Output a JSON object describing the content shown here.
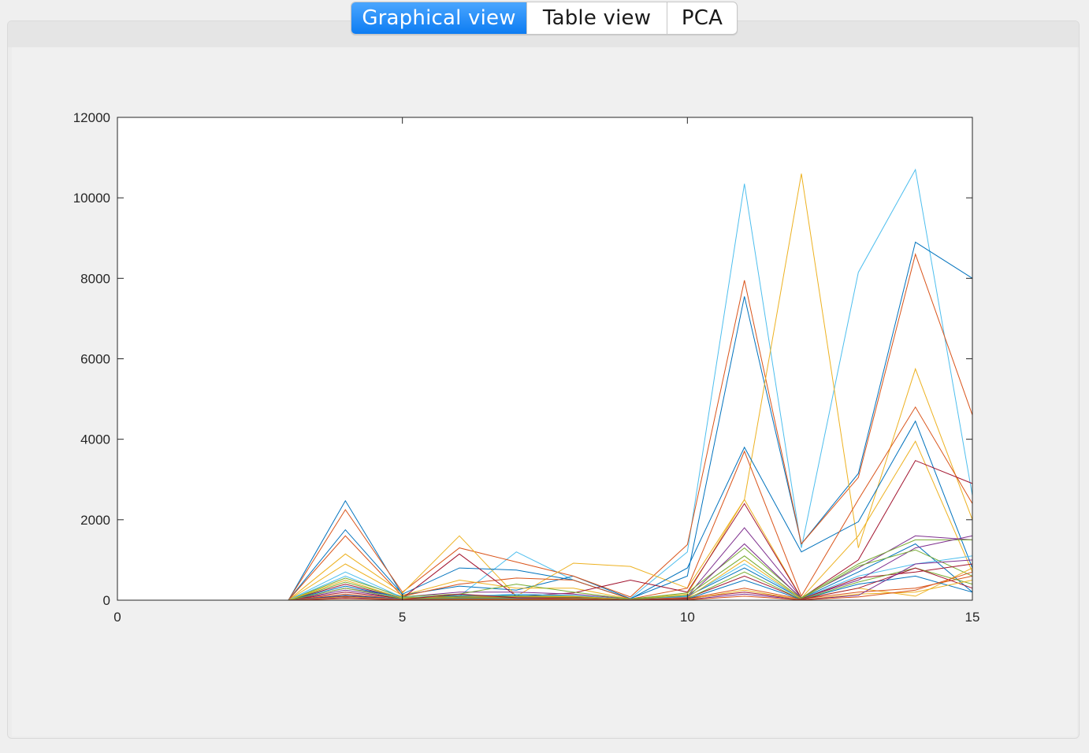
{
  "tabs": [
    {
      "label": "Graphical view",
      "active": true
    },
    {
      "label": "Table view",
      "active": false
    },
    {
      "label": "PCA",
      "active": false
    }
  ],
  "colors": {
    "tab_active": "#0d7cf2",
    "series_palette": [
      "#0072BD",
      "#D95319",
      "#EDB120",
      "#7E2F8E",
      "#77AC30",
      "#4DBEEE",
      "#A2142F"
    ]
  },
  "chart_data": {
    "type": "line",
    "title": "",
    "xlabel": "",
    "ylabel": "",
    "xlim": [
      0,
      15
    ],
    "ylim": [
      0,
      12000
    ],
    "xticks": [
      0,
      5,
      10,
      15
    ],
    "yticks": [
      0,
      2000,
      4000,
      6000,
      8000,
      10000,
      12000
    ],
    "grid": false,
    "legend": "none",
    "x": [
      1,
      2,
      3,
      4,
      5,
      6,
      7,
      8,
      9,
      10,
      11,
      12,
      13,
      14,
      15
    ],
    "series": [
      {
        "color": "#4DBEEE",
        "values": [
          0,
          0,
          0,
          600,
          60,
          100,
          1200,
          500,
          40,
          1200,
          10350,
          1300,
          8150,
          10700,
          2600
        ]
      },
      {
        "color": "#0072BD",
        "values": [
          0,
          0,
          0,
          2470,
          130,
          350,
          250,
          600,
          40,
          600,
          7550,
          1400,
          3150,
          8900,
          8000
        ]
      },
      {
        "color": "#D95319",
        "values": [
          0,
          0,
          0,
          2250,
          200,
          1300,
          950,
          600,
          80,
          1380,
          7950,
          1400,
          3050,
          8600,
          4600
        ]
      },
      {
        "color": "#EDB120",
        "values": [
          0,
          0,
          0,
          1150,
          180,
          1600,
          100,
          920,
          840,
          300,
          2500,
          10600,
          1300,
          5750,
          2000
        ]
      },
      {
        "color": "#0072BD",
        "values": [
          0,
          0,
          0,
          1750,
          150,
          800,
          750,
          500,
          30,
          800,
          3800,
          1200,
          1950,
          4450,
          800
        ]
      },
      {
        "color": "#D95319",
        "values": [
          0,
          0,
          0,
          1600,
          100,
          400,
          550,
          500,
          30,
          300,
          3700,
          100,
          2500,
          4800,
          2400
        ]
      },
      {
        "color": "#EDB120",
        "values": [
          0,
          0,
          0,
          900,
          120,
          500,
          300,
          300,
          30,
          150,
          2500,
          50,
          1600,
          3950,
          700
        ]
      },
      {
        "color": "#A2142F",
        "values": [
          0,
          0,
          0,
          400,
          50,
          1150,
          100,
          180,
          500,
          200,
          2400,
          50,
          1000,
          3470,
          2900
        ]
      },
      {
        "color": "#7E2F8E",
        "values": [
          0,
          0,
          0,
          300,
          80,
          200,
          200,
          150,
          30,
          100,
          1800,
          60,
          800,
          1600,
          1500
        ]
      },
      {
        "color": "#77AC30",
        "values": [
          0,
          0,
          0,
          550,
          90,
          150,
          400,
          200,
          30,
          180,
          1300,
          60,
          900,
          1500,
          1500
        ]
      },
      {
        "color": "#0072BD",
        "values": [
          0,
          0,
          0,
          350,
          60,
          120,
          120,
          100,
          20,
          100,
          800,
          40,
          700,
          1400,
          200
        ]
      },
      {
        "color": "#4DBEEE",
        "values": [
          0,
          0,
          0,
          700,
          70,
          90,
          150,
          120,
          20,
          90,
          900,
          40,
          600,
          900,
          1100
        ]
      },
      {
        "color": "#7E2F8E",
        "values": [
          0,
          0,
          0,
          250,
          40,
          80,
          90,
          80,
          15,
          70,
          1400,
          40,
          500,
          1300,
          1600
        ]
      },
      {
        "color": "#77AC30",
        "values": [
          0,
          0,
          0,
          450,
          60,
          100,
          100,
          100,
          20,
          120,
          1100,
          40,
          850,
          1250,
          600
        ]
      },
      {
        "color": "#EDB120",
        "values": [
          0,
          0,
          0,
          500,
          50,
          70,
          80,
          90,
          15,
          60,
          1000,
          30,
          300,
          100,
          800
        ]
      },
      {
        "color": "#A2142F",
        "values": [
          0,
          0,
          0,
          200,
          40,
          60,
          60,
          70,
          10,
          50,
          600,
          30,
          550,
          700,
          900
        ]
      },
      {
        "color": "#D95319",
        "values": [
          0,
          0,
          0,
          150,
          30,
          50,
          50,
          60,
          10,
          40,
          300,
          30,
          200,
          300,
          600
        ]
      },
      {
        "color": "#0072BD",
        "values": [
          0,
          0,
          0,
          120,
          30,
          40,
          40,
          50,
          10,
          30,
          500,
          20,
          400,
          600,
          200
        ]
      },
      {
        "color": "#77AC30",
        "values": [
          0,
          0,
          0,
          300,
          40,
          60,
          60,
          60,
          10,
          40,
          700,
          20,
          450,
          800,
          400
        ]
      },
      {
        "color": "#A2142F",
        "values": [
          0,
          0,
          0,
          100,
          20,
          150,
          60,
          40,
          10,
          40,
          200,
          20,
          300,
          800,
          300
        ]
      },
      {
        "color": "#EDB120",
        "values": [
          0,
          0,
          0,
          80,
          20,
          30,
          30,
          30,
          5,
          20,
          250,
          10,
          150,
          200,
          500
        ]
      },
      {
        "color": "#7E2F8E",
        "values": [
          0,
          0,
          0,
          60,
          15,
          20,
          20,
          20,
          5,
          15,
          150,
          10,
          120,
          900,
          1000
        ]
      },
      {
        "color": "#D95319",
        "values": [
          0,
          0,
          0,
          40,
          10,
          15,
          15,
          15,
          3,
          10,
          100,
          8,
          80,
          250,
          700
        ]
      }
    ]
  }
}
